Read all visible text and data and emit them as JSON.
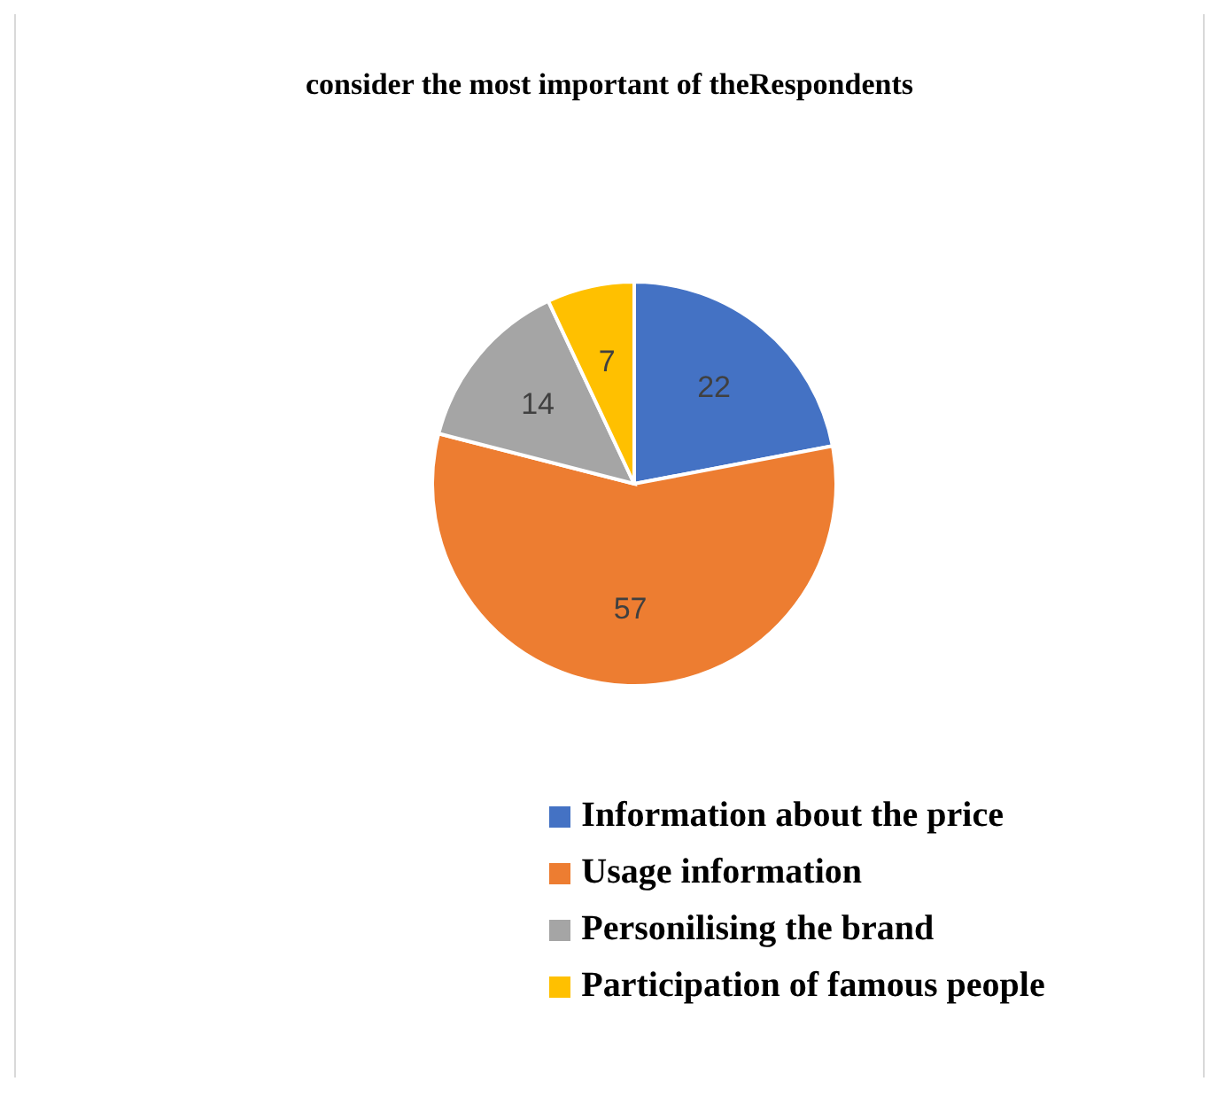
{
  "chart_data": {
    "type": "pie",
    "title": "consider the most important of theRespondents",
    "categories": [
      "Information about the price",
      "Usage information",
      "Personilising the brand",
      "Participation of famous people"
    ],
    "values": [
      22,
      57,
      14,
      7
    ],
    "colors": [
      "#4472c4",
      "#ed7d31",
      "#a5a5a5",
      "#ffc000"
    ],
    "data_labels": true,
    "legend": "bottom"
  }
}
